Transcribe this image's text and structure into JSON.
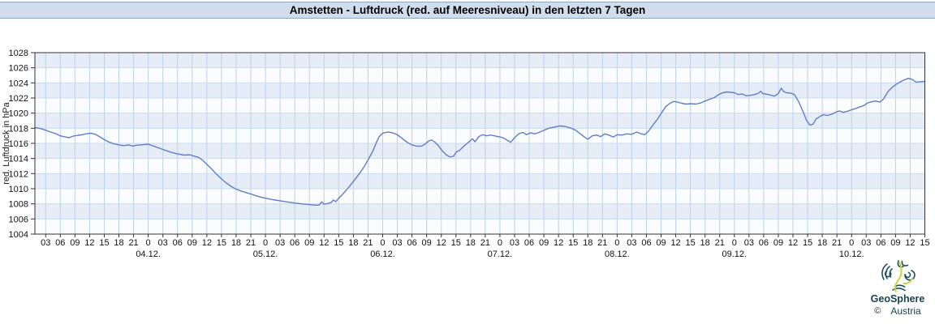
{
  "title": "Amstetten - Luftdruck (red. auf Meeresniveau) in den letzten 7 Tagen",
  "y_axis": {
    "label": "red. Luftdruck in hPa",
    "min": 1004,
    "max": 1028,
    "tick_step": 2,
    "ticks": [
      1004,
      1006,
      1008,
      1010,
      1012,
      1014,
      1016,
      1018,
      1020,
      1022,
      1024,
      1026,
      1028
    ]
  },
  "x_axis": {
    "t_min": 0.8,
    "t_max": 183,
    "tick_hours": [
      3,
      6,
      9,
      12,
      15,
      18,
      21,
      24,
      27,
      30,
      33,
      36,
      39,
      42,
      45,
      48,
      51,
      54,
      57,
      60,
      63,
      66,
      69,
      72,
      75,
      78,
      81,
      84,
      87,
      90,
      93,
      96,
      99,
      102,
      105,
      108,
      111,
      114,
      117,
      120,
      123,
      126,
      129,
      132,
      135,
      138,
      141,
      144,
      147,
      150,
      153,
      156,
      159,
      162,
      165,
      168,
      171,
      174,
      177,
      180,
      183
    ],
    "tick_labels": [
      "03",
      "06",
      "09",
      "12",
      "15",
      "18",
      "21",
      "0",
      "03",
      "06",
      "09",
      "12",
      "15",
      "18",
      "21",
      "0",
      "03",
      "06",
      "09",
      "12",
      "15",
      "18",
      "21",
      "0",
      "03",
      "06",
      "09",
      "12",
      "15",
      "18",
      "21",
      "0",
      "03",
      "06",
      "09",
      "12",
      "15",
      "18",
      "21",
      "0",
      "03",
      "06",
      "09",
      "12",
      "15",
      "18",
      "21",
      "0",
      "03",
      "06",
      "09",
      "12",
      "15",
      "18",
      "21",
      "0",
      "03",
      "06",
      "09",
      "12",
      "15"
    ],
    "date_labels": [
      {
        "t": 24,
        "label": "04.12."
      },
      {
        "t": 48,
        "label": "05.12."
      },
      {
        "t": 72,
        "label": "06.12."
      },
      {
        "t": 96,
        "label": "07.12."
      },
      {
        "t": 120,
        "label": "08.12."
      },
      {
        "t": 144,
        "label": "09.12."
      },
      {
        "t": 168,
        "label": "10.12."
      }
    ]
  },
  "chart_data": {
    "type": "line",
    "title": "Amstetten - Luftdruck (red. auf Meeresniveau) in den letzten 7 Tagen",
    "ylabel": "red. Luftdruck in hPa",
    "unit": "hPa",
    "ylim": [
      1004,
      1028
    ],
    "x_unit": "hours since 03.12. 00:00",
    "series": [
      {
        "name": "red. Luftdruck",
        "t": [
          0.8,
          2,
          3,
          4,
          5,
          6,
          7,
          7.8,
          8.6,
          9.5,
          10.5,
          11.5,
          12.3,
          13.2,
          14,
          15,
          16,
          17,
          18,
          19,
          20,
          20.8,
          21.6,
          22.4,
          23.2,
          24,
          25.5,
          27,
          28.5,
          30,
          31.5,
          32.5,
          33.5,
          34.3,
          35,
          36,
          37,
          38,
          39,
          40,
          41,
          42,
          43,
          44,
          45,
          46,
          47,
          48,
          49.5,
          51,
          52.5,
          54,
          55.5,
          57,
          58.3,
          59,
          59.5,
          60,
          60.8,
          61.5,
          61.9,
          62.4,
          63,
          64,
          65,
          66,
          67,
          68,
          69,
          70,
          70.7,
          71.3,
          72,
          73,
          74,
          75,
          76,
          77,
          78,
          79,
          80,
          80.7,
          81.4,
          82,
          82.7,
          83.4,
          84.2,
          85,
          85.8,
          86.5,
          87.1,
          87.7,
          88.4,
          89.2,
          90,
          90.4,
          90.9,
          91.7,
          92.5,
          93.3,
          94.1,
          94.9,
          95.5,
          96,
          96.8,
          97.5,
          98.2,
          99,
          99.9,
          100.7,
          101.5,
          102.3,
          103.1,
          104,
          104.9,
          106,
          107.1,
          108.2,
          109.3,
          110.4,
          111.5,
          112.4,
          113.2,
          114,
          114.9,
          115.8,
          116.6,
          117.5,
          118.3,
          119.2,
          120,
          121,
          122,
          123,
          124,
          124.8,
          125.6,
          126.4,
          127.3,
          128.2,
          129.1,
          130,
          130.8,
          131.6,
          132.4,
          133.2,
          134.1,
          135.1,
          136.1,
          137.1,
          138,
          139,
          139.9,
          140.8,
          141.6,
          142.5,
          143.3,
          144,
          144.8,
          145.6,
          146.4,
          147.3,
          148.1,
          149,
          149.4,
          149.8,
          150.6,
          151.4,
          152.2,
          153,
          153.6,
          154.1,
          154.7,
          155.5,
          156.3,
          157.1,
          158,
          158.8,
          159.5,
          160.1,
          160.7,
          161.4,
          162.2,
          163,
          163.9,
          164.7,
          165.5,
          166.3,
          167.2,
          168,
          168.8,
          169.6,
          170.5,
          171.3,
          172.1,
          172.9,
          173.8,
          174.6,
          175.4,
          176.3,
          177.1,
          177.9,
          178.8,
          179.6,
          180.4,
          181.2,
          182,
          182.9
        ],
        "v": [
          1018.1,
          1017.95,
          1017.75,
          1017.5,
          1017.3,
          1017.0,
          1016.85,
          1016.75,
          1016.95,
          1017.05,
          1017.15,
          1017.3,
          1017.35,
          1017.2,
          1016.9,
          1016.5,
          1016.15,
          1015.95,
          1015.8,
          1015.7,
          1015.8,
          1015.65,
          1015.75,
          1015.8,
          1015.85,
          1015.9,
          1015.55,
          1015.2,
          1014.85,
          1014.6,
          1014.45,
          1014.5,
          1014.3,
          1014.15,
          1013.85,
          1013.25,
          1012.6,
          1011.9,
          1011.3,
          1010.75,
          1010.3,
          1009.95,
          1009.7,
          1009.5,
          1009.3,
          1009.1,
          1008.9,
          1008.75,
          1008.55,
          1008.4,
          1008.25,
          1008.1,
          1008.0,
          1007.9,
          1007.82,
          1007.85,
          1008.25,
          1007.95,
          1008.05,
          1008.2,
          1008.5,
          1008.3,
          1008.75,
          1009.4,
          1010.15,
          1010.95,
          1011.8,
          1012.7,
          1013.8,
          1015.0,
          1016.1,
          1016.9,
          1017.35,
          1017.5,
          1017.4,
          1017.15,
          1016.65,
          1016.15,
          1015.8,
          1015.62,
          1015.65,
          1015.9,
          1016.3,
          1016.45,
          1016.15,
          1015.7,
          1015.0,
          1014.5,
          1014.2,
          1014.3,
          1014.9,
          1015.05,
          1015.5,
          1015.95,
          1016.4,
          1016.6,
          1016.2,
          1016.9,
          1017.15,
          1017.0,
          1017.1,
          1017.0,
          1016.9,
          1016.85,
          1016.7,
          1016.4,
          1016.15,
          1016.75,
          1017.3,
          1017.45,
          1017.15,
          1017.4,
          1017.25,
          1017.45,
          1017.7,
          1018.0,
          1018.15,
          1018.3,
          1018.25,
          1018.05,
          1017.75,
          1017.3,
          1016.9,
          1016.55,
          1017.0,
          1017.1,
          1016.9,
          1017.25,
          1017.1,
          1016.85,
          1017.15,
          1017.1,
          1017.25,
          1017.2,
          1017.5,
          1017.3,
          1017.15,
          1017.6,
          1018.4,
          1019.15,
          1020.05,
          1020.9,
          1021.3,
          1021.55,
          1021.45,
          1021.3,
          1021.2,
          1021.25,
          1021.2,
          1021.35,
          1021.6,
          1021.85,
          1022.05,
          1022.45,
          1022.7,
          1022.8,
          1022.75,
          1022.7,
          1022.45,
          1022.55,
          1022.3,
          1022.35,
          1022.45,
          1022.65,
          1022.9,
          1022.6,
          1022.5,
          1022.4,
          1022.25,
          1022.6,
          1023.3,
          1022.85,
          1022.7,
          1022.65,
          1022.45,
          1021.6,
          1020.3,
          1019.0,
          1018.4,
          1018.55,
          1019.2,
          1019.5,
          1019.8,
          1019.7,
          1019.85,
          1020.1,
          1020.3,
          1020.1,
          1020.25,
          1020.45,
          1020.6,
          1020.8,
          1021.0,
          1021.35,
          1021.5,
          1021.6,
          1021.45,
          1021.9,
          1022.8,
          1023.4,
          1023.8,
          1024.1,
          1024.4,
          1024.6,
          1024.45,
          1024.1,
          1024.15,
          1024.2
        ]
      }
    ],
    "legend": "none",
    "grid": "on"
  },
  "logo": {
    "brand": "GeoSphere",
    "country": "Austria",
    "copyright": "©"
  },
  "colors": {
    "line": "#5f7ec9",
    "band": "#e7edf7",
    "band_alt": "#fbfcfe",
    "grid_v": "#b9d3ec",
    "grid_h": "#c8dbf0",
    "frame": "#333333",
    "tick_text": "#111111",
    "titlebar_bg": "#cfdded",
    "titlebar_border": "#8fa7c2",
    "logo_teal": "#1d4f5e",
    "logo_green": "#c3d63f"
  }
}
